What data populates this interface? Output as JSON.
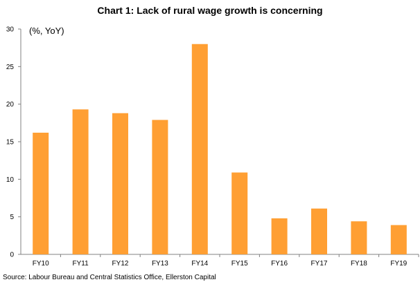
{
  "chart_data": {
    "type": "bar",
    "title": "Chart 1: Lack of rural wage growth  is concerning",
    "unit_label": "(%, YoY)",
    "source": "Source: Labour Bureau and Central Statistics Office, Ellerston Capital",
    "categories": [
      "FY10",
      "FY11",
      "FY12",
      "FY13",
      "FY14",
      "FY15",
      "FY16",
      "FY17",
      "FY18",
      "FY19"
    ],
    "values": [
      16.2,
      19.3,
      18.8,
      17.9,
      28.0,
      10.9,
      4.8,
      6.1,
      4.4,
      3.9
    ],
    "ylim": [
      0,
      30
    ],
    "yticks": [
      "0",
      "5",
      "10",
      "15",
      "20",
      "25",
      "30"
    ],
    "grid": false,
    "bar_color": "#FF9F33",
    "axis_color": "#808080"
  }
}
